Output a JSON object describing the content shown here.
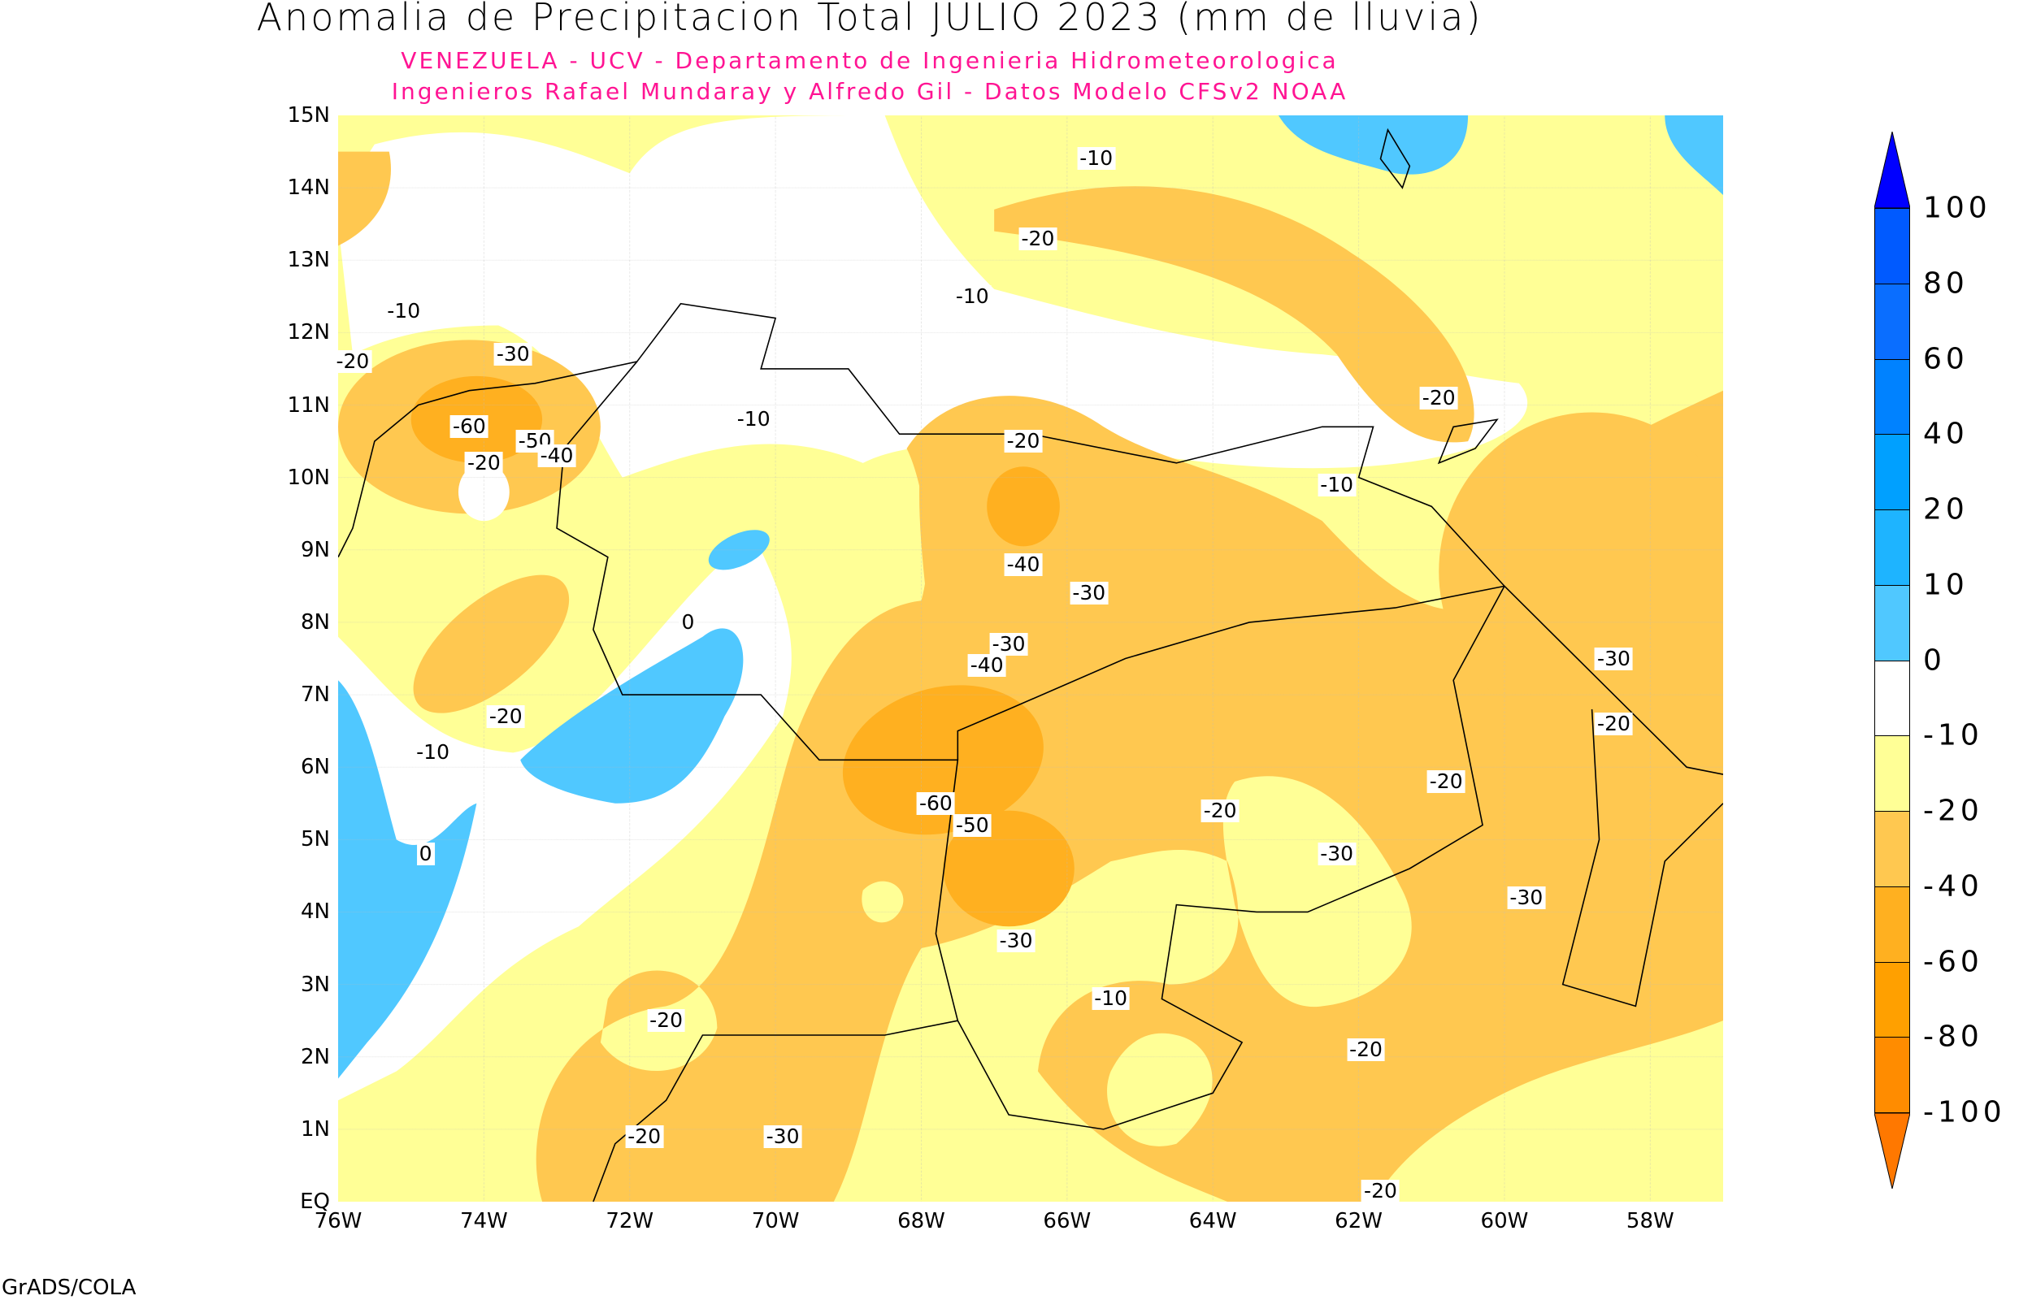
{
  "title": "Anomalia de Precipitacion Total JULIO 2023 (mm de lluvia)",
  "subtitle1": "VENEZUELA - UCV - Departamento de Ingenieria Hidrometeorologica",
  "subtitle2": "Ingenieros Rafael Mundaray y Alfredo Gil - Datos Modelo CFSv2 NOAA",
  "credit": "GrADS/COLA",
  "map": {
    "lon_range": [
      -76,
      -57
    ],
    "lat_range": [
      0,
      15
    ],
    "x_ticks": [
      {
        "lon": -76,
        "label": "76W"
      },
      {
        "lon": -74,
        "label": "74W"
      },
      {
        "lon": -72,
        "label": "72W"
      },
      {
        "lon": -70,
        "label": "70W"
      },
      {
        "lon": -68,
        "label": "68W"
      },
      {
        "lon": -66,
        "label": "66W"
      },
      {
        "lon": -64,
        "label": "64W"
      },
      {
        "lon": -62,
        "label": "62W"
      },
      {
        "lon": -60,
        "label": "60W"
      },
      {
        "lon": -58,
        "label": "58W"
      }
    ],
    "y_ticks": [
      {
        "lat": 0,
        "label": "EQ"
      },
      {
        "lat": 1,
        "label": "1N"
      },
      {
        "lat": 2,
        "label": "2N"
      },
      {
        "lat": 3,
        "label": "3N"
      },
      {
        "lat": 4,
        "label": "4N"
      },
      {
        "lat": 5,
        "label": "5N"
      },
      {
        "lat": 6,
        "label": "6N"
      },
      {
        "lat": 7,
        "label": "7N"
      },
      {
        "lat": 8,
        "label": "8N"
      },
      {
        "lat": 9,
        "label": "9N"
      },
      {
        "lat": 10,
        "label": "10N"
      },
      {
        "lat": 11,
        "label": "11N"
      },
      {
        "lat": 12,
        "label": "12N"
      },
      {
        "lat": 13,
        "label": "13N"
      },
      {
        "lat": 14,
        "label": "14N"
      },
      {
        "lat": 15,
        "label": "15N"
      }
    ],
    "contour_labels": [
      {
        "t": "-10",
        "lon": -65.6,
        "lat": 14.4
      },
      {
        "t": "-20",
        "lon": -66.4,
        "lat": 13.3
      },
      {
        "t": "-10",
        "lon": -67.3,
        "lat": 12.5
      },
      {
        "t": "-10",
        "lon": -75.1,
        "lat": 12.3
      },
      {
        "t": "-20",
        "lon": -75.8,
        "lat": 11.6
      },
      {
        "t": "-30",
        "lon": -73.6,
        "lat": 11.7
      },
      {
        "t": "-60",
        "lon": -74.2,
        "lat": 10.7
      },
      {
        "t": "-50",
        "lon": -73.3,
        "lat": 10.5
      },
      {
        "t": "-20",
        "lon": -74,
        "lat": 10.2
      },
      {
        "t": "-40",
        "lon": -73,
        "lat": 10.3
      },
      {
        "t": "-10",
        "lon": -70.3,
        "lat": 10.8
      },
      {
        "t": "-20",
        "lon": -66.6,
        "lat": 10.5
      },
      {
        "t": "-10",
        "lon": -62.3,
        "lat": 9.9
      },
      {
        "t": "-20",
        "lon": -60.9,
        "lat": 11.1
      },
      {
        "t": "-40",
        "lon": -66.6,
        "lat": 8.8
      },
      {
        "t": "-30",
        "lon": -65.7,
        "lat": 8.4
      },
      {
        "t": "-30",
        "lon": -66.8,
        "lat": 7.7
      },
      {
        "t": "-40",
        "lon": -67.1,
        "lat": 7.4
      },
      {
        "t": "0",
        "lon": -71.2,
        "lat": 8.0
      },
      {
        "t": "-20",
        "lon": -73.7,
        "lat": 6.7
      },
      {
        "t": "-10",
        "lon": -74.7,
        "lat": 6.2
      },
      {
        "t": "0",
        "lon": -74.8,
        "lat": 4.8
      },
      {
        "t": "-60",
        "lon": -67.8,
        "lat": 5.5
      },
      {
        "t": "-50",
        "lon": -67.3,
        "lat": 5.2
      },
      {
        "t": "-20",
        "lon": -63.9,
        "lat": 5.4
      },
      {
        "t": "-30",
        "lon": -62.3,
        "lat": 4.8
      },
      {
        "t": "-20",
        "lon": -60.8,
        "lat": 5.8
      },
      {
        "t": "-30",
        "lon": -58.5,
        "lat": 7.5
      },
      {
        "t": "-20",
        "lon": -58.5,
        "lat": 6.6
      },
      {
        "t": "-30",
        "lon": -59.7,
        "lat": 4.2
      },
      {
        "t": "-30",
        "lon": -66.7,
        "lat": 3.6
      },
      {
        "t": "-20",
        "lon": -71.5,
        "lat": 2.5
      },
      {
        "t": "-10",
        "lon": -65.4,
        "lat": 2.8
      },
      {
        "t": "-20",
        "lon": -61.9,
        "lat": 2.1
      },
      {
        "t": "-20",
        "lon": -71.8,
        "lat": 0.9
      },
      {
        "t": "-30",
        "lon": -69.9,
        "lat": 0.9
      },
      {
        "t": "-20",
        "lon": -61.7,
        "lat": 0.15
      }
    ]
  },
  "colorbar": {
    "top_arrow_color": "#0000ff",
    "bottom_arrow_color": "#ff7800",
    "segments": [
      {
        "from": 80,
        "to": 100,
        "color": "#005aff"
      },
      {
        "from": 60,
        "to": 80,
        "color": "#0a6eff"
      },
      {
        "from": 40,
        "to": 60,
        "color": "#0082ff"
      },
      {
        "from": 20,
        "to": 40,
        "color": "#00a0ff"
      },
      {
        "from": 10,
        "to": 20,
        "color": "#1eb4ff"
      },
      {
        "from": 0,
        "to": 10,
        "color": "#50c8ff"
      },
      {
        "from": -10,
        "to": 0,
        "color": "#ffffff"
      },
      {
        "from": -20,
        "to": -10,
        "color": "#ffff96"
      },
      {
        "from": -40,
        "to": -20,
        "color": "#ffc850"
      },
      {
        "from": -60,
        "to": -40,
        "color": "#ffb020"
      },
      {
        "from": -80,
        "to": -60,
        "color": "#ffa000"
      },
      {
        "from": -100,
        "to": -80,
        "color": "#ff8c00"
      }
    ],
    "labels": [
      "100",
      "80",
      "60",
      "40",
      "20",
      "10",
      "0",
      "-10",
      "-20",
      "-40",
      "-60",
      "-80",
      "-100"
    ]
  }
}
